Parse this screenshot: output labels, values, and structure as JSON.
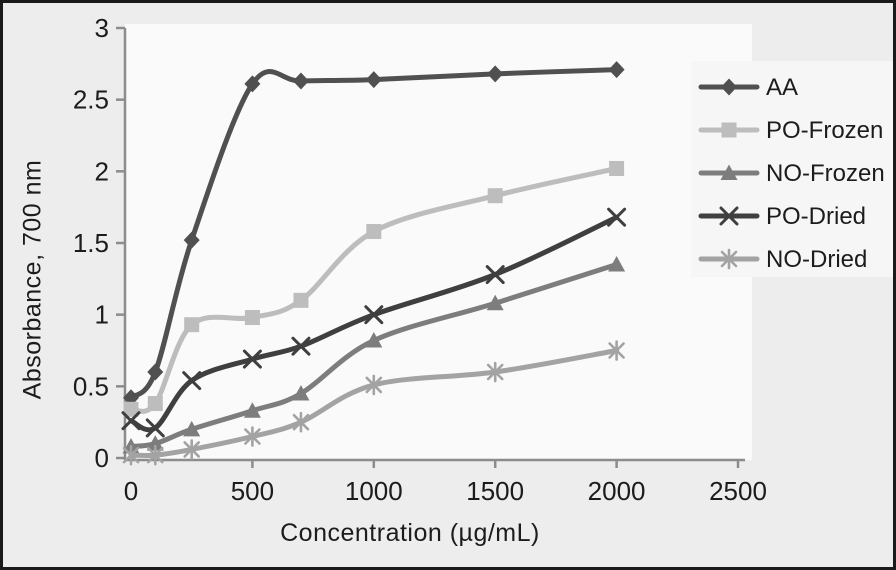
{
  "figure": {
    "kind": "scanned-line-chart-figure",
    "frame_color": "#1a1a1a",
    "background_color": "#ededed",
    "plot_background_color": "#fafafa",
    "axis_color": "#8c8c8c",
    "text_color": "#1c1c1c"
  },
  "chart_data": {
    "type": "line",
    "title": "",
    "xlabel": "Concentration (µg/mL)",
    "ylabel": "Absorbance, 700 nm",
    "xlim": [
      0,
      2500
    ],
    "ylim": [
      0,
      3
    ],
    "grid": false,
    "legend_position": "right",
    "x": [
      0,
      100,
      250,
      500,
      700,
      1000,
      1500,
      2000
    ],
    "x_ticks": {
      "values": [
        0,
        500,
        1000,
        1500,
        2000,
        2500
      ],
      "labels": [
        "0",
        "500",
        "1000",
        "1500",
        "2000",
        "2500"
      ]
    },
    "y_ticks": {
      "values": [
        0,
        0.5,
        1,
        1.5,
        2,
        2.5,
        3
      ],
      "labels": [
        "0",
        "0.5",
        "1",
        "1.5",
        "2",
        "2.5",
        "3"
      ]
    },
    "series": [
      {
        "name": "AA",
        "marker": "diamond",
        "color": "#505050",
        "values": [
          0.42,
          0.6,
          1.52,
          2.61,
          2.63,
          2.64,
          2.68,
          2.71
        ]
      },
      {
        "name": "PO-Frozen",
        "marker": "square",
        "color": "#bdbdbd",
        "values": [
          0.34,
          0.38,
          0.93,
          0.98,
          1.1,
          1.58,
          1.83,
          2.02
        ]
      },
      {
        "name": "NO-Frozen",
        "marker": "triangle",
        "color": "#7d7d7d",
        "values": [
          0.08,
          0.1,
          0.2,
          0.33,
          0.45,
          0.82,
          1.08,
          1.35
        ]
      },
      {
        "name": "PO-Dried",
        "marker": "x",
        "color": "#3f3f3f",
        "values": [
          0.26,
          0.21,
          0.54,
          0.69,
          0.78,
          1.0,
          1.28,
          1.68
        ]
      },
      {
        "name": "NO-Dried",
        "marker": "asterisk",
        "color": "#a3a3a3",
        "values": [
          0.02,
          0.02,
          0.06,
          0.15,
          0.25,
          0.51,
          0.6,
          0.75
        ]
      }
    ]
  }
}
